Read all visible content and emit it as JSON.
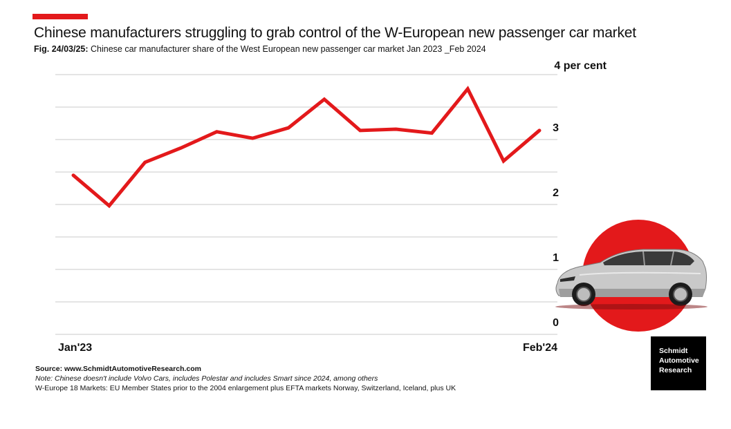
{
  "header": {
    "title": "Chinese manufacturers struggling to grab control of the W-European new passenger car market",
    "subtitle_label": "Fig. 24/03/25:",
    "subtitle_text": "Chinese car manufacturer share of the West European new passenger car market Jan 2023 _Feb 2024"
  },
  "chart_data": {
    "type": "line",
    "title": "Chinese manufacturers struggling to grab control of the W-European new passenger car market",
    "xlabel": "",
    "ylabel": "per cent",
    "x_start_label": "Jan'23",
    "x_end_label": "Feb'24",
    "ylim": [
      0,
      4
    ],
    "y_ticks": [
      {
        "value": 0,
        "label": "0"
      },
      {
        "value": 1,
        "label": "1"
      },
      {
        "value": 2,
        "label": "2"
      },
      {
        "value": 3,
        "label": "3"
      },
      {
        "value": 4,
        "label": "4 per cent"
      }
    ],
    "grid_step": 0.5,
    "series": [
      {
        "name": "Chinese car manufacturer share",
        "color": "#e3191b",
        "values": [
          2.45,
          1.98,
          2.65,
          2.87,
          3.12,
          3.02,
          3.18,
          3.62,
          3.14,
          3.16,
          3.1,
          3.78,
          2.67,
          3.14
        ]
      }
    ]
  },
  "footer": {
    "source": "Source: www.SchmidtAutomotiveResearch.com",
    "note": "Note: Chinese doesn't include Volvo Cars, includes Polestar and includes Smart since 2024, among others",
    "markets": "W-Europe 18 Markets: EU Member States prior to the 2004 enlargement plus EFTA markets Norway, Switzerland, Iceland, plus UK"
  },
  "brand": {
    "line1": "Schmidt",
    "line2": "Automotive",
    "line3": "Research"
  },
  "colors": {
    "accent": "#e3191b",
    "grid": "#d4d4d4",
    "text": "#111111"
  }
}
